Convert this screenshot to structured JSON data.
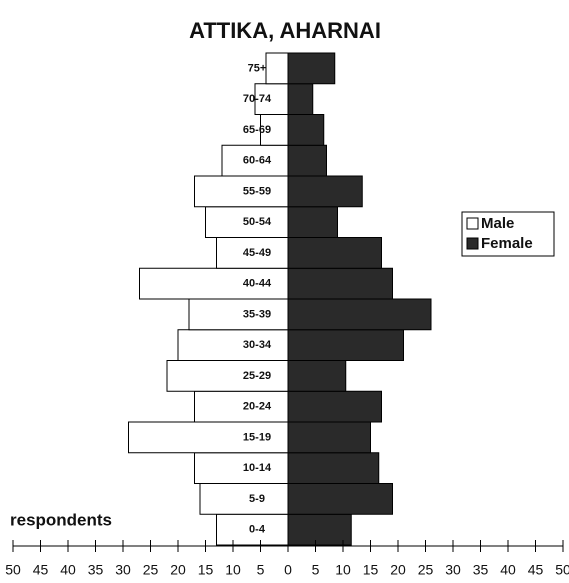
{
  "chart_data": {
    "type": "pyramid",
    "title": "ATTIKA, AHARNAI",
    "x_label": "respondents",
    "categories": [
      "0-4",
      "5-9",
      "10-14",
      "15-19",
      "20-24",
      "25-29",
      "30-34",
      "35-39",
      "40-44",
      "45-49",
      "50-54",
      "55-59",
      "60-64",
      "65-69",
      "70-74",
      "75+"
    ],
    "series": [
      {
        "name": "Male",
        "color": "#ffffff",
        "values": [
          -13,
          -16,
          -17,
          -29,
          -17,
          -22,
          -20,
          -18,
          -27,
          -13,
          -15,
          -17,
          -12,
          -5,
          -6,
          -4
        ]
      },
      {
        "name": "Female",
        "color": "#2a2a2a",
        "values": [
          11.5,
          19,
          16.5,
          15,
          17,
          10.5,
          21,
          26,
          19,
          17,
          9,
          13.5,
          7,
          6.5,
          4.5,
          8.5
        ]
      }
    ],
    "xlim": [
      -50,
      50
    ],
    "xticks": [
      {
        "value": -50,
        "label": "50"
      },
      {
        "value": -45,
        "label": "45"
      },
      {
        "value": -40,
        "label": "40"
      },
      {
        "value": -35,
        "label": "35"
      },
      {
        "value": -30,
        "label": "30"
      },
      {
        "value": -25,
        "label": "25"
      },
      {
        "value": -20,
        "label": "20"
      },
      {
        "value": -15,
        "label": "15"
      },
      {
        "value": -10,
        "label": "10"
      },
      {
        "value": -5,
        "label": "5"
      },
      0,
      5,
      10,
      15,
      20,
      25,
      30,
      35,
      40,
      45,
      50
    ],
    "legend": "right"
  }
}
